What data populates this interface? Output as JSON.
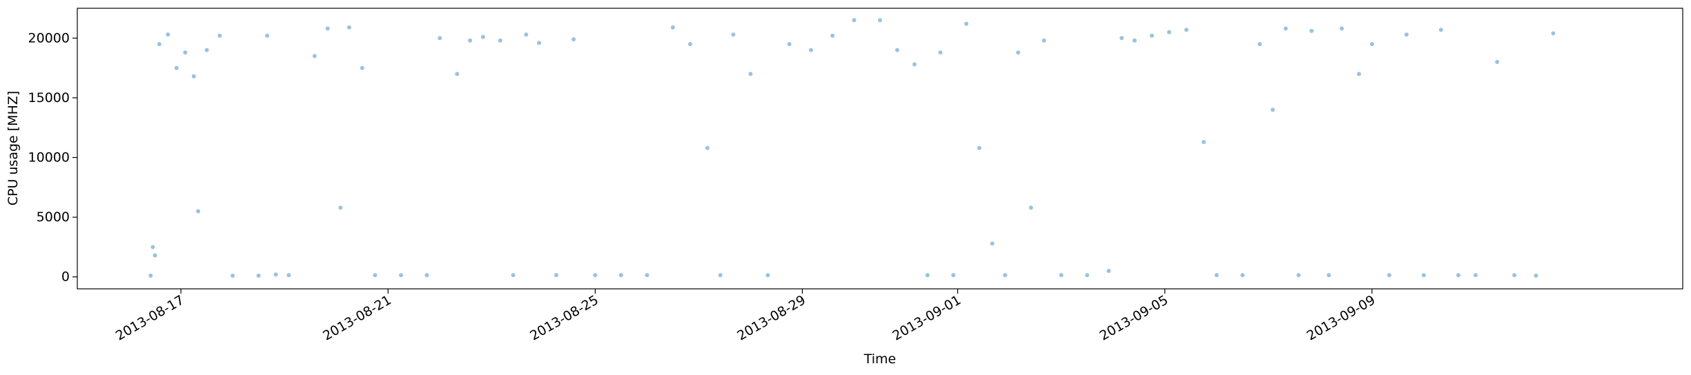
{
  "chart_data": {
    "type": "scatter",
    "title": "",
    "xlabel": "Time",
    "ylabel": "CPU usage [MHZ]",
    "x_type": "date",
    "xlim": [
      "2013-08-15",
      "2013-09-15"
    ],
    "ylim": [
      -1000,
      22500
    ],
    "x_ticks": [
      "2013-08-17",
      "2013-08-21",
      "2013-08-25",
      "2013-08-29",
      "2013-09-01",
      "2013-09-05",
      "2013-09-09"
    ],
    "y_ticks": [
      0,
      5000,
      10000,
      15000,
      20000
    ],
    "grid": false,
    "legend": "none",
    "marker_color": "#1f77b4",
    "marker_alpha": 0.45,
    "series": [
      {
        "points": [
          [
            "2013-08-16T10:00",
            100
          ],
          [
            "2013-08-16T11:00",
            2500
          ],
          [
            "2013-08-16T12:00",
            1800
          ],
          [
            "2013-08-16T14:00",
            19500
          ],
          [
            "2013-08-16T18:00",
            20300
          ],
          [
            "2013-08-16T22:00",
            17500
          ],
          [
            "2013-08-17T02:00",
            18800
          ],
          [
            "2013-08-17T06:00",
            16800
          ],
          [
            "2013-08-17T08:00",
            5500
          ],
          [
            "2013-08-17T12:00",
            19000
          ],
          [
            "2013-08-17T18:00",
            20200
          ],
          [
            "2013-08-18T00:00",
            100
          ],
          [
            "2013-08-18T12:00",
            100
          ],
          [
            "2013-08-18T16:00",
            20200
          ],
          [
            "2013-08-18T20:00",
            200
          ],
          [
            "2013-08-19T02:00",
            150
          ],
          [
            "2013-08-19T14:00",
            18500
          ],
          [
            "2013-08-19T20:00",
            20800
          ],
          [
            "2013-08-20T02:00",
            5800
          ],
          [
            "2013-08-20T06:00",
            20900
          ],
          [
            "2013-08-20T12:00",
            17500
          ],
          [
            "2013-08-20T18:00",
            150
          ],
          [
            "2013-08-21T06:00",
            150
          ],
          [
            "2013-08-21T18:00",
            150
          ],
          [
            "2013-08-22T00:00",
            20000
          ],
          [
            "2013-08-22T08:00",
            17000
          ],
          [
            "2013-08-22T14:00",
            19800
          ],
          [
            "2013-08-22T20:00",
            20100
          ],
          [
            "2013-08-23T04:00",
            19800
          ],
          [
            "2013-08-23T10:00",
            150
          ],
          [
            "2013-08-23T16:00",
            20300
          ],
          [
            "2013-08-23T22:00",
            19600
          ],
          [
            "2013-08-24T06:00",
            150
          ],
          [
            "2013-08-24T14:00",
            19900
          ],
          [
            "2013-08-25T00:00",
            150
          ],
          [
            "2013-08-25T12:00",
            150
          ],
          [
            "2013-08-26T00:00",
            150
          ],
          [
            "2013-08-26T12:00",
            20900
          ],
          [
            "2013-08-26T20:00",
            19500
          ],
          [
            "2013-08-27T04:00",
            10800
          ],
          [
            "2013-08-27T10:00",
            150
          ],
          [
            "2013-08-27T16:00",
            20300
          ],
          [
            "2013-08-28T00:00",
            17000
          ],
          [
            "2013-08-28T08:00",
            150
          ],
          [
            "2013-08-28T18:00",
            19500
          ],
          [
            "2013-08-29T04:00",
            19000
          ],
          [
            "2013-08-29T14:00",
            20200
          ],
          [
            "2013-08-30T00:00",
            21500
          ],
          [
            "2013-08-30T12:00",
            21500
          ],
          [
            "2013-08-30T20:00",
            19000
          ],
          [
            "2013-08-31T04:00",
            17800
          ],
          [
            "2013-08-31T10:00",
            150
          ],
          [
            "2013-08-31T16:00",
            18800
          ],
          [
            "2013-08-31T22:00",
            150
          ],
          [
            "2013-09-01T04:00",
            21200
          ],
          [
            "2013-09-01T10:00",
            10800
          ],
          [
            "2013-09-01T16:00",
            2800
          ],
          [
            "2013-09-01T22:00",
            150
          ],
          [
            "2013-09-02T04:00",
            18800
          ],
          [
            "2013-09-02T10:00",
            5800
          ],
          [
            "2013-09-02T16:00",
            19800
          ],
          [
            "2013-09-03T00:00",
            150
          ],
          [
            "2013-09-03T12:00",
            150
          ],
          [
            "2013-09-03T22:00",
            500
          ],
          [
            "2013-09-04T04:00",
            20000
          ],
          [
            "2013-09-04T10:00",
            19800
          ],
          [
            "2013-09-04T18:00",
            20200
          ],
          [
            "2013-09-05T02:00",
            20500
          ],
          [
            "2013-09-05T10:00",
            20700
          ],
          [
            "2013-09-05T18:00",
            11300
          ],
          [
            "2013-09-06T00:00",
            150
          ],
          [
            "2013-09-06T12:00",
            150
          ],
          [
            "2013-09-06T20:00",
            19500
          ],
          [
            "2013-09-07T02:00",
            14000
          ],
          [
            "2013-09-07T08:00",
            20800
          ],
          [
            "2013-09-07T14:00",
            150
          ],
          [
            "2013-09-07T20:00",
            20600
          ],
          [
            "2013-09-08T04:00",
            150
          ],
          [
            "2013-09-08T10:00",
            20800
          ],
          [
            "2013-09-08T18:00",
            17000
          ],
          [
            "2013-09-09T00:00",
            19500
          ],
          [
            "2013-09-09T08:00",
            150
          ],
          [
            "2013-09-09T16:00",
            20300
          ],
          [
            "2013-09-10T00:00",
            150
          ],
          [
            "2013-09-10T08:00",
            20700
          ],
          [
            "2013-09-10T16:00",
            150
          ],
          [
            "2013-09-11T00:00",
            150
          ],
          [
            "2013-09-11T10:00",
            18000
          ],
          [
            "2013-09-11T18:00",
            150
          ],
          [
            "2013-09-12T04:00",
            100
          ],
          [
            "2013-09-12T12:00",
            20400
          ]
        ]
      }
    ]
  }
}
